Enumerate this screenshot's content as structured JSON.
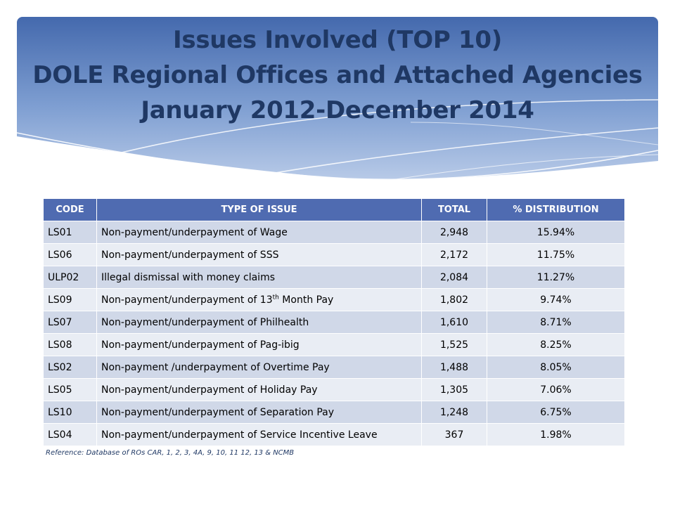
{
  "title": {
    "line1": "Issues Involved (TOP 10)",
    "line2": "DOLE Regional Offices and Attached Agencies",
    "line3": "January 2012-December 2014"
  },
  "table": {
    "headers": {
      "code": "CODE",
      "type": "TYPE OF ISSUE",
      "total": "TOTAL",
      "dist": "% DISTRIBUTION"
    },
    "rows": [
      {
        "code": "LS01",
        "type": "Non-payment/underpayment of Wage",
        "total": "2,948",
        "dist": "15.94%"
      },
      {
        "code": "LS06",
        "type": "Non-payment/underpayment of SSS",
        "total": "2,172",
        "dist": "11.75%"
      },
      {
        "code": "ULP02",
        "type": "Illegal dismissal with money claims",
        "total": "2,084",
        "dist": "11.27%"
      },
      {
        "code": "LS09",
        "type_before": "Non-payment/underpayment of 13",
        "type_sup": "th",
        "type_after": " Month Pay",
        "total": "1,802",
        "dist": "9.74%"
      },
      {
        "code": "LS07",
        "type": "Non-payment/underpayment of Philhealth",
        "total": "1,610",
        "dist": "8.71%"
      },
      {
        "code": "LS08",
        "type": "Non-payment/underpayment of Pag-ibig",
        "total": "1,525",
        "dist": "8.25%"
      },
      {
        "code": "LS02",
        "type": "Non-payment /underpayment of Overtime Pay",
        "total": "1,488",
        "dist": "8.05%"
      },
      {
        "code": "LS05",
        "type": "Non-payment/underpayment of Holiday Pay",
        "total": "1,305",
        "dist": "7.06%"
      },
      {
        "code": "LS10",
        "type": "Non-payment/underpayment of Separation Pay",
        "total": "1,248",
        "dist": "6.75%"
      },
      {
        "code": "LS04",
        "type": "Non-payment/underpayment of Service Incentive Leave",
        "total": "367",
        "dist": "1.98%"
      }
    ]
  },
  "reference": "Reference: Database of ROs CAR, 1, 2, 3, 4A, 9, 10, 11 12, 13 & NCMB",
  "colors": {
    "title_text": "#1f3864",
    "banner_dark": "#4a6fb0",
    "banner_light": "#b8c9e6",
    "header_fill": "#4f6bb1",
    "row_dark": "#d0d8e8",
    "row_light": "#e9edf4"
  }
}
